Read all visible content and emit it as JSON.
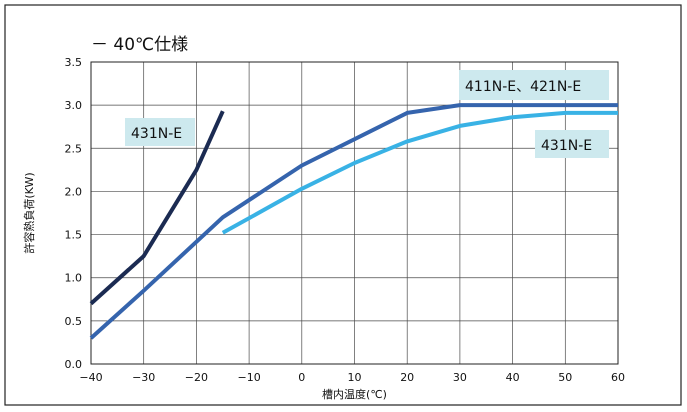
{
  "chart_data": {
    "type": "line",
    "title": "－ 40℃仕様",
    "xlabel": "槽内温度(℃)",
    "ylabel": "許容熱負荷(KW)",
    "xlim": [
      -40,
      60
    ],
    "ylim": [
      0.0,
      3.5
    ],
    "x_ticks": [
      "−40",
      "−30",
      "−20",
      "−10",
      "0",
      "10",
      "20",
      "30",
      "40",
      "50",
      "60"
    ],
    "y_ticks": [
      "0.0",
      "0.5",
      "1.0",
      "1.5",
      "2.0",
      "2.5",
      "3.0",
      "3.5"
    ],
    "grid": true,
    "series": [
      {
        "label": "431N-E",
        "color": "#1b2b52",
        "x": [
          -40,
          -30,
          -20,
          -15
        ],
        "y": [
          0.7,
          1.25,
          2.25,
          2.93
        ]
      },
      {
        "label": "411N-E、421N-E",
        "color": "#3564ad",
        "x": [
          -40,
          -30,
          -15,
          0,
          20,
          30,
          60
        ],
        "y": [
          0.3,
          0.85,
          1.7,
          2.3,
          2.91,
          3.0,
          3.0
        ]
      },
      {
        "label": "431N-E",
        "color": "#39b2e5",
        "x": [
          -15,
          0,
          10,
          20,
          30,
          40,
          50,
          60
        ],
        "y": [
          1.52,
          2.03,
          2.33,
          2.58,
          2.76,
          2.86,
          2.91,
          2.91
        ]
      }
    ]
  }
}
